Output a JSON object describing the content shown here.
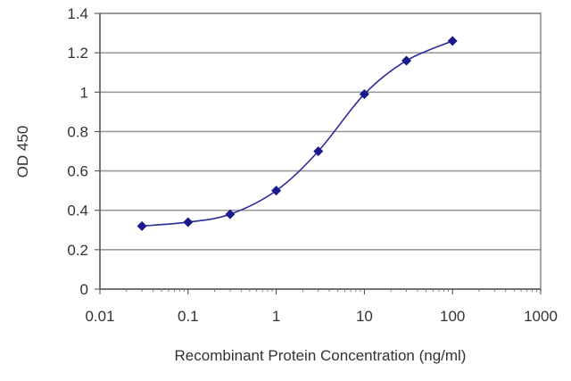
{
  "chart_data": {
    "type": "line",
    "xlabel": "Recombinant Protein Concentration (ng/ml)",
    "ylabel": "OD 450",
    "x_scale": "log",
    "xlim": [
      0.01,
      1000
    ],
    "ylim": [
      0,
      1.4
    ],
    "x_ticks": [
      0.01,
      0.1,
      1,
      10,
      100,
      1000
    ],
    "x_tick_labels": [
      "0.01",
      "0.1",
      "1",
      "10",
      "100",
      "1000"
    ],
    "y_ticks": [
      0,
      0.2,
      0.4,
      0.6,
      0.8,
      1,
      1.2,
      1.4
    ],
    "y_tick_labels": [
      "0",
      "0.2",
      "0.4",
      "0.6",
      "0.8",
      "1",
      "1.2",
      "1.4"
    ],
    "grid": "horizontal",
    "series": [
      {
        "color": "#2b2b9a",
        "marker_color": "#1a1a8c",
        "x": [
          0.03,
          0.1,
          0.3,
          1,
          3,
          10,
          30,
          100
        ],
        "y": [
          0.32,
          0.34,
          0.38,
          0.5,
          0.7,
          0.99,
          1.16,
          1.26
        ]
      }
    ]
  }
}
